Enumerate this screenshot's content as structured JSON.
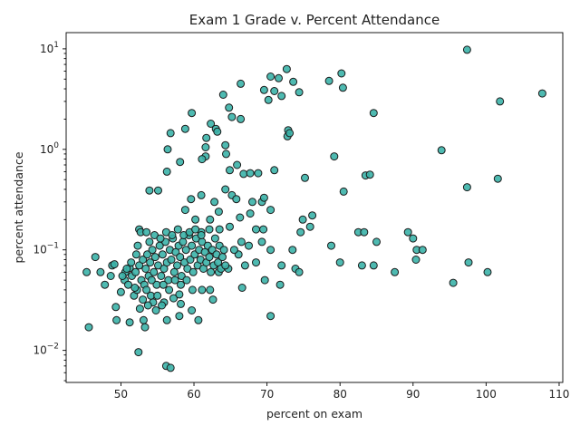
{
  "chart_data": {
    "type": "scatter",
    "title": "Exam 1 Grade v. Percent Attendance",
    "xlabel": "percent on exam",
    "ylabel": "percent attendance",
    "xlim": [
      42.5,
      110.5
    ],
    "ylim": [
      0.0048,
      14.5
    ],
    "yscale": "log",
    "grid": false,
    "x_ticks": [
      50,
      60,
      70,
      80,
      90,
      100,
      110
    ],
    "y_ticks": [
      {
        "value": 0.01,
        "base": "10",
        "exp": "−2"
      },
      {
        "value": 0.1,
        "base": "10",
        "exp": "−1"
      },
      {
        "value": 1,
        "base": "10",
        "exp": "0"
      },
      {
        "value": 10,
        "base": "10",
        "exp": "1"
      }
    ],
    "marker_color": "#3bb3a8",
    "marker_edge": "#1a1a1a",
    "points": [
      [
        97.4,
        9.8
      ],
      [
        72.7,
        6.3
      ],
      [
        70.5,
        5.3
      ],
      [
        71.6,
        5.1
      ],
      [
        80.2,
        5.7
      ],
      [
        73.6,
        4.7
      ],
      [
        78.5,
        4.8
      ],
      [
        66.4,
        4.5
      ],
      [
        69.6,
        3.9
      ],
      [
        71.0,
        3.8
      ],
      [
        72.0,
        3.4
      ],
      [
        74.4,
        3.7
      ],
      [
        70.2,
        3.1
      ],
      [
        64.0,
        3.5
      ],
      [
        80.4,
        4.1
      ],
      [
        101.9,
        3.0
      ],
      [
        107.7,
        3.6
      ],
      [
        64.8,
        2.6
      ],
      [
        65.2,
        2.1
      ],
      [
        66.4,
        2.0
      ],
      [
        59.7,
        2.3
      ],
      [
        84.6,
        2.3
      ],
      [
        62.3,
        1.8
      ],
      [
        63.0,
        1.6
      ],
      [
        63.2,
        1.5
      ],
      [
        58.8,
        1.6
      ],
      [
        56.8,
        1.45
      ],
      [
        72.9,
        1.55
      ],
      [
        72.8,
        1.35
      ],
      [
        73.1,
        1.45
      ],
      [
        61.7,
        1.3
      ],
      [
        61.6,
        1.05
      ],
      [
        64.3,
        1.1
      ],
      [
        56.4,
        1.0
      ],
      [
        64.4,
        0.9
      ],
      [
        61.6,
        0.85
      ],
      [
        61.1,
        0.8
      ],
      [
        58.1,
        0.75
      ],
      [
        65.9,
        0.7
      ],
      [
        64.9,
        0.62
      ],
      [
        56.3,
        0.6
      ],
      [
        66.8,
        0.57
      ],
      [
        67.7,
        0.58
      ],
      [
        68.8,
        0.58
      ],
      [
        71.0,
        0.62
      ],
      [
        75.2,
        0.52
      ],
      [
        79.2,
        0.85
      ],
      [
        93.9,
        0.98
      ],
      [
        83.5,
        0.55
      ],
      [
        84.1,
        0.56
      ],
      [
        97.4,
        0.42
      ],
      [
        101.6,
        0.51
      ],
      [
        80.5,
        0.38
      ],
      [
        64.3,
        0.4
      ],
      [
        53.9,
        0.39
      ],
      [
        55.1,
        0.39
      ],
      [
        58.8,
        0.25
      ],
      [
        59.6,
        0.32
      ],
      [
        61.0,
        0.35
      ],
      [
        62.8,
        0.3
      ],
      [
        63.4,
        0.24
      ],
      [
        65.2,
        0.35
      ],
      [
        65.8,
        0.32
      ],
      [
        68.0,
        0.3
      ],
      [
        69.3,
        0.3
      ],
      [
        69.6,
        0.33
      ],
      [
        70.5,
        0.25
      ],
      [
        74.9,
        0.2
      ],
      [
        76.2,
        0.22
      ],
      [
        66.3,
        0.21
      ],
      [
        60.2,
        0.2
      ],
      [
        62.2,
        0.2
      ],
      [
        64.9,
        0.17
      ],
      [
        67.7,
        0.23
      ],
      [
        62.1,
        0.16
      ],
      [
        61.0,
        0.15
      ],
      [
        63.5,
        0.16
      ],
      [
        68.5,
        0.16
      ],
      [
        69.5,
        0.16
      ],
      [
        75.9,
        0.17
      ],
      [
        74.6,
        0.15
      ],
      [
        82.5,
        0.15
      ],
      [
        83.3,
        0.15
      ],
      [
        89.3,
        0.15
      ],
      [
        90.0,
        0.13
      ],
      [
        90.5,
        0.1
      ],
      [
        91.3,
        0.1
      ],
      [
        85.0,
        0.12
      ],
      [
        78.8,
        0.11
      ],
      [
        73.5,
        0.1
      ],
      [
        73.9,
        0.065
      ],
      [
        72.0,
        0.07
      ],
      [
        70.5,
        0.1
      ],
      [
        69.3,
        0.12
      ],
      [
        67.5,
        0.11
      ],
      [
        66.1,
        0.09
      ],
      [
        67.0,
        0.07
      ],
      [
        68.5,
        0.075
      ],
      [
        69.7,
        0.05
      ],
      [
        71.8,
        0.045
      ],
      [
        74.4,
        0.06
      ],
      [
        80.0,
        0.075
      ],
      [
        83.0,
        0.07
      ],
      [
        84.6,
        0.07
      ],
      [
        87.5,
        0.06
      ],
      [
        90.4,
        0.08
      ],
      [
        95.5,
        0.047
      ],
      [
        97.6,
        0.075
      ],
      [
        100.2,
        0.06
      ],
      [
        66.6,
        0.042
      ],
      [
        63.4,
        0.06
      ],
      [
        64.7,
        0.065
      ],
      [
        61.1,
        0.04
      ],
      [
        62.2,
        0.04
      ],
      [
        62.6,
        0.032
      ],
      [
        58.2,
        0.029
      ],
      [
        59.7,
        0.025
      ],
      [
        60.6,
        0.02
      ],
      [
        58.0,
        0.022
      ],
      [
        56.3,
        0.02
      ],
      [
        54.4,
        0.03
      ],
      [
        55.9,
        0.03
      ],
      [
        53.7,
        0.028
      ],
      [
        53.1,
        0.02
      ],
      [
        53.3,
        0.017
      ],
      [
        52.4,
        0.0096
      ],
      [
        51.2,
        0.019
      ],
      [
        49.4,
        0.02
      ],
      [
        45.6,
        0.017
      ],
      [
        49.3,
        0.027
      ],
      [
        47.8,
        0.045
      ],
      [
        48.6,
        0.055
      ],
      [
        47.2,
        0.06
      ],
      [
        45.3,
        0.06
      ],
      [
        46.5,
        0.085
      ],
      [
        48.8,
        0.07
      ],
      [
        49.1,
        0.072
      ],
      [
        50.6,
        0.06
      ],
      [
        51.2,
        0.066
      ],
      [
        50.0,
        0.038
      ],
      [
        52.5,
        0.16
      ],
      [
        52.7,
        0.15
      ],
      [
        53.5,
        0.15
      ],
      [
        52.3,
        0.11
      ],
      [
        56.2,
        0.007
      ],
      [
        56.8,
        0.0067
      ],
      [
        70.5,
        0.022
      ],
      [
        66.5,
        0.12
      ],
      [
        65.5,
        0.1
      ],
      [
        50.5,
        0.05
      ],
      [
        51.0,
        0.045
      ],
      [
        51.5,
        0.055
      ],
      [
        51.8,
        0.035
      ],
      [
        52.0,
        0.06
      ],
      [
        52.2,
        0.04
      ],
      [
        52.5,
        0.07
      ],
      [
        52.8,
        0.05
      ],
      [
        53.0,
        0.08
      ],
      [
        53.2,
        0.045
      ],
      [
        53.4,
        0.065
      ],
      [
        53.6,
        0.09
      ],
      [
        53.8,
        0.055
      ],
      [
        54.0,
        0.075
      ],
      [
        54.1,
        0.035
      ],
      [
        54.3,
        0.1
      ],
      [
        54.5,
        0.06
      ],
      [
        54.7,
        0.085
      ],
      [
        54.9,
        0.045
      ],
      [
        55.1,
        0.07
      ],
      [
        55.3,
        0.11
      ],
      [
        55.5,
        0.055
      ],
      [
        55.7,
        0.09
      ],
      [
        55.9,
        0.065
      ],
      [
        56.1,
        0.12
      ],
      [
        56.3,
        0.075
      ],
      [
        56.5,
        0.05
      ],
      [
        56.7,
        0.1
      ],
      [
        56.9,
        0.08
      ],
      [
        57.1,
        0.13
      ],
      [
        57.3,
        0.06
      ],
      [
        57.5,
        0.095
      ],
      [
        57.7,
        0.07
      ],
      [
        57.9,
        0.11
      ],
      [
        58.1,
        0.085
      ],
      [
        58.3,
        0.055
      ],
      [
        58.5,
        0.12
      ],
      [
        58.7,
        0.075
      ],
      [
        58.9,
        0.1
      ],
      [
        59.1,
        0.065
      ],
      [
        59.3,
        0.14
      ],
      [
        59.5,
        0.08
      ],
      [
        59.7,
        0.11
      ],
      [
        59.9,
        0.06
      ],
      [
        60.1,
        0.09
      ],
      [
        60.3,
        0.13
      ],
      [
        60.5,
        0.07
      ],
      [
        60.7,
        0.1
      ],
      [
        60.9,
        0.08
      ],
      [
        61.1,
        0.12
      ],
      [
        61.3,
        0.065
      ],
      [
        61.5,
        0.095
      ],
      [
        61.7,
        0.075
      ],
      [
        61.9,
        0.11
      ],
      [
        62.1,
        0.085
      ],
      [
        62.3,
        0.06
      ],
      [
        62.5,
        0.1
      ],
      [
        62.7,
        0.07
      ],
      [
        62.9,
        0.13
      ],
      [
        63.1,
        0.09
      ],
      [
        63.3,
        0.075
      ],
      [
        63.5,
        0.11
      ],
      [
        63.7,
        0.065
      ],
      [
        63.9,
        0.085
      ],
      [
        64.1,
        0.1
      ],
      [
        64.3,
        0.07
      ],
      [
        53.5,
        0.04
      ],
      [
        54.2,
        0.05
      ],
      [
        55.0,
        0.035
      ],
      [
        55.8,
        0.045
      ],
      [
        56.6,
        0.04
      ],
      [
        57.4,
        0.05
      ],
      [
        58.2,
        0.045
      ],
      [
        59.0,
        0.05
      ],
      [
        52.1,
        0.09
      ],
      [
        51.4,
        0.075
      ],
      [
        50.8,
        0.065
      ],
      [
        53.9,
        0.12
      ],
      [
        54.6,
        0.14
      ],
      [
        55.4,
        0.13
      ],
      [
        56.2,
        0.15
      ],
      [
        57.0,
        0.14
      ],
      [
        57.8,
        0.16
      ],
      [
        58.6,
        0.14
      ],
      [
        59.4,
        0.15
      ],
      [
        60.2,
        0.16
      ],
      [
        61.0,
        0.14
      ],
      [
        54.8,
        0.025
      ],
      [
        55.6,
        0.028
      ],
      [
        57.2,
        0.033
      ],
      [
        58.0,
        0.036
      ],
      [
        59.8,
        0.04
      ],
      [
        53.0,
        0.032
      ],
      [
        52.6,
        0.026
      ],
      [
        51.9,
        0.042
      ],
      [
        50.2,
        0.055
      ]
    ]
  }
}
